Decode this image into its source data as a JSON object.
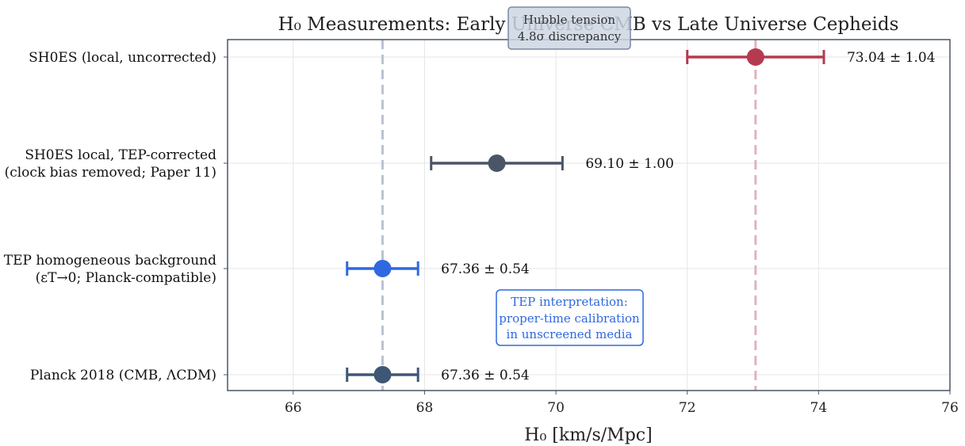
{
  "chart_data": {
    "type": "errorbar",
    "title": "H₀ Measurements: Early Universe CMB vs Late Universe Cepheids",
    "xlabel": "H₀ [km/s/Mpc]",
    "xlim": [
      65,
      76
    ],
    "xticks": [
      66,
      68,
      70,
      72,
      74,
      76
    ],
    "grid": true,
    "reference_lines": [
      {
        "name": "Planck reference",
        "value": 67.36,
        "color": "#b9c3d3"
      },
      {
        "name": "SH0ES reference",
        "value": 73.04,
        "color": "#e0b3bb"
      }
    ],
    "points": [
      {
        "label_lines": [
          "SH0ES (local, uncorrected)"
        ],
        "value": 73.04,
        "error": 1.04,
        "value_text": "73.04 ± 1.04",
        "color": "#b53a4f"
      },
      {
        "label_lines": [
          "SH0ES local, TEP-corrected",
          "(clock bias removed; Paper 11)"
        ],
        "value": 69.1,
        "error": 1.0,
        "value_text": "69.10 ± 1.00",
        "color": "#4a5567"
      },
      {
        "label_lines": [
          "TEP homogeneous background",
          "(εT→0; Planck-compatible)"
        ],
        "value": 67.36,
        "error": 0.54,
        "value_text": "67.36 ± 0.54",
        "color": "#2f68e0"
      },
      {
        "label_lines": [
          "Planck 2018 (CMB, ΛCDM)"
        ],
        "value": 67.36,
        "error": 0.54,
        "value_text": "67.36 ± 0.54",
        "color": "#3e5777"
      }
    ],
    "annotations": [
      {
        "lines": [
          "Hubble tension",
          "4.8σ discrepancy"
        ],
        "color": "#333333",
        "bg": "#cdd6e3",
        "border": "#7a8aa0"
      },
      {
        "lines": [
          "TEP interpretation:",
          "proper-time calibration",
          "in unscreened media"
        ],
        "color": "#2f68e0",
        "bg": "#ffffff",
        "border": "#2f68e0"
      }
    ]
  }
}
